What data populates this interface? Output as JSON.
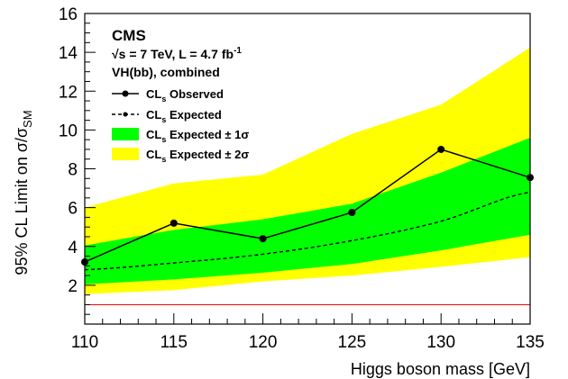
{
  "chart_data": {
    "type": "line",
    "title": "",
    "xlabel": "Higgs boson mass [GeV]",
    "ylabel": "95% CL Limit on σ/σ_SM",
    "xlim": [
      110,
      135
    ],
    "ylim": [
      0,
      16
    ],
    "x_ticks": [
      110,
      115,
      120,
      125,
      130,
      135
    ],
    "y_ticks": [
      2,
      4,
      6,
      8,
      10,
      12,
      14,
      16
    ],
    "grid": false,
    "legend_position": "top-left",
    "annotations": {
      "experiment": "CMS",
      "energy_line": "√s = 7 TeV, L = 4.7 fb",
      "energy_sup": "-1",
      "channel": "VH(bb), combined"
    },
    "legend": [
      {
        "main": "CL",
        "sub": "s",
        "rest": " Observed"
      },
      {
        "main": "CL",
        "sub": "s",
        "rest": " Expected"
      },
      {
        "main": "CL",
        "sub": "s",
        "rest": " Expected ± 1σ"
      },
      {
        "main": "CL",
        "sub": "s",
        "rest": " Expected ± 2σ"
      }
    ],
    "x": [
      110,
      115,
      120,
      125,
      130,
      135
    ],
    "series": [
      {
        "name": "CLs Observed",
        "values": [
          3.2,
          5.2,
          4.4,
          5.75,
          9.0,
          7.55
        ]
      },
      {
        "name": "CLs Expected",
        "values": [
          2.8,
          3.15,
          3.6,
          4.3,
          5.3,
          6.8
        ]
      }
    ],
    "bands": [
      {
        "name": "CLs Expected ± 2σ",
        "lower": [
          1.55,
          1.75,
          2.2,
          2.5,
          2.95,
          3.45
        ],
        "upper": [
          6.0,
          7.25,
          7.7,
          9.8,
          11.3,
          14.25
        ]
      },
      {
        "name": "CLs Expected ± 1σ",
        "lower": [
          2.05,
          2.3,
          2.65,
          3.1,
          3.8,
          4.6
        ],
        "upper": [
          4.05,
          4.85,
          5.4,
          6.2,
          7.8,
          9.6
        ]
      }
    ],
    "reference_line": {
      "y": 1.0,
      "color": "#ff0000"
    },
    "colors": {
      "band_2sigma": "#ffff00",
      "band_1sigma": "#00ff00",
      "observed": "#000000",
      "expected": "#000000",
      "reference": "#ff0000"
    }
  }
}
